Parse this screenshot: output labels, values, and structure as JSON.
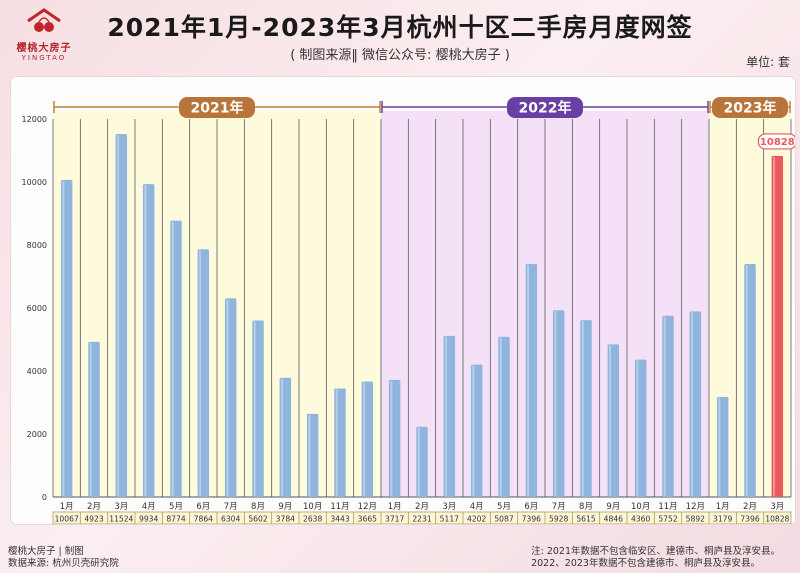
{
  "header": {
    "logo_text": "樱桃大房子",
    "logo_sub": "YINGTAO",
    "title": "2021年1月-2023年3月杭州十区二手房月度网签",
    "subtitle": "( 制图来源‖ 微信公众号: 樱桃大房子 )",
    "unit": "单位: 套"
  },
  "footer": {
    "left": [
      "樱桃大房子 | 制图",
      "数据来源: 杭州贝壳研究院"
    ],
    "right": [
      "注: 2021年数据不包含临安区、建德市、桐庐县及淳安县。",
      "2022、2023年数据不包含建德市、桐庐县及淳安县。"
    ]
  },
  "watermark": {
    "text": "樱桃大房子",
    "sub": "YINGTAO"
  },
  "chart_data": {
    "type": "bar",
    "categories": [
      "1月",
      "2月",
      "3月",
      "4月",
      "5月",
      "6月",
      "7月",
      "8月",
      "9月",
      "10月",
      "11月",
      "12月",
      "1月",
      "2月",
      "3月",
      "4月",
      "5月",
      "6月",
      "7月",
      "8月",
      "9月",
      "10月",
      "11月",
      "12月",
      "1月",
      "2月",
      "3月"
    ],
    "values": [
      10067,
      4923,
      11524,
      9934,
      8774,
      7864,
      6304,
      5602,
      3784,
      2638,
      3443,
      3665,
      3717,
      2231,
      5117,
      4202,
      5087,
      7396,
      5928,
      5615,
      4846,
      4360,
      5752,
      5892,
      3179,
      7396,
      10828
    ],
    "groups": [
      {
        "label": "2021年",
        "start": 0,
        "end": 11,
        "bg": "#fdfbdc",
        "line": "#c4822e",
        "label_bg": "#b8743a"
      },
      {
        "label": "2022年",
        "start": 12,
        "end": 23,
        "bg": "#f5e1f7",
        "line": "#6a3fa3",
        "label_bg": "#6a3fa3"
      },
      {
        "label": "2023年",
        "start": 24,
        "end": 26,
        "bg": "#fdfbdc",
        "line": "#c4822e",
        "label_bg": "#b8743a"
      }
    ],
    "highlight": {
      "index": 26,
      "label": "10828",
      "color": "#e85a5e"
    },
    "bar_color": "#8fb5dc",
    "yticks": [
      0,
      2000,
      4000,
      6000,
      8000,
      10000,
      12000
    ],
    "ylim": [
      0,
      12000
    ],
    "grid": "vertical"
  }
}
